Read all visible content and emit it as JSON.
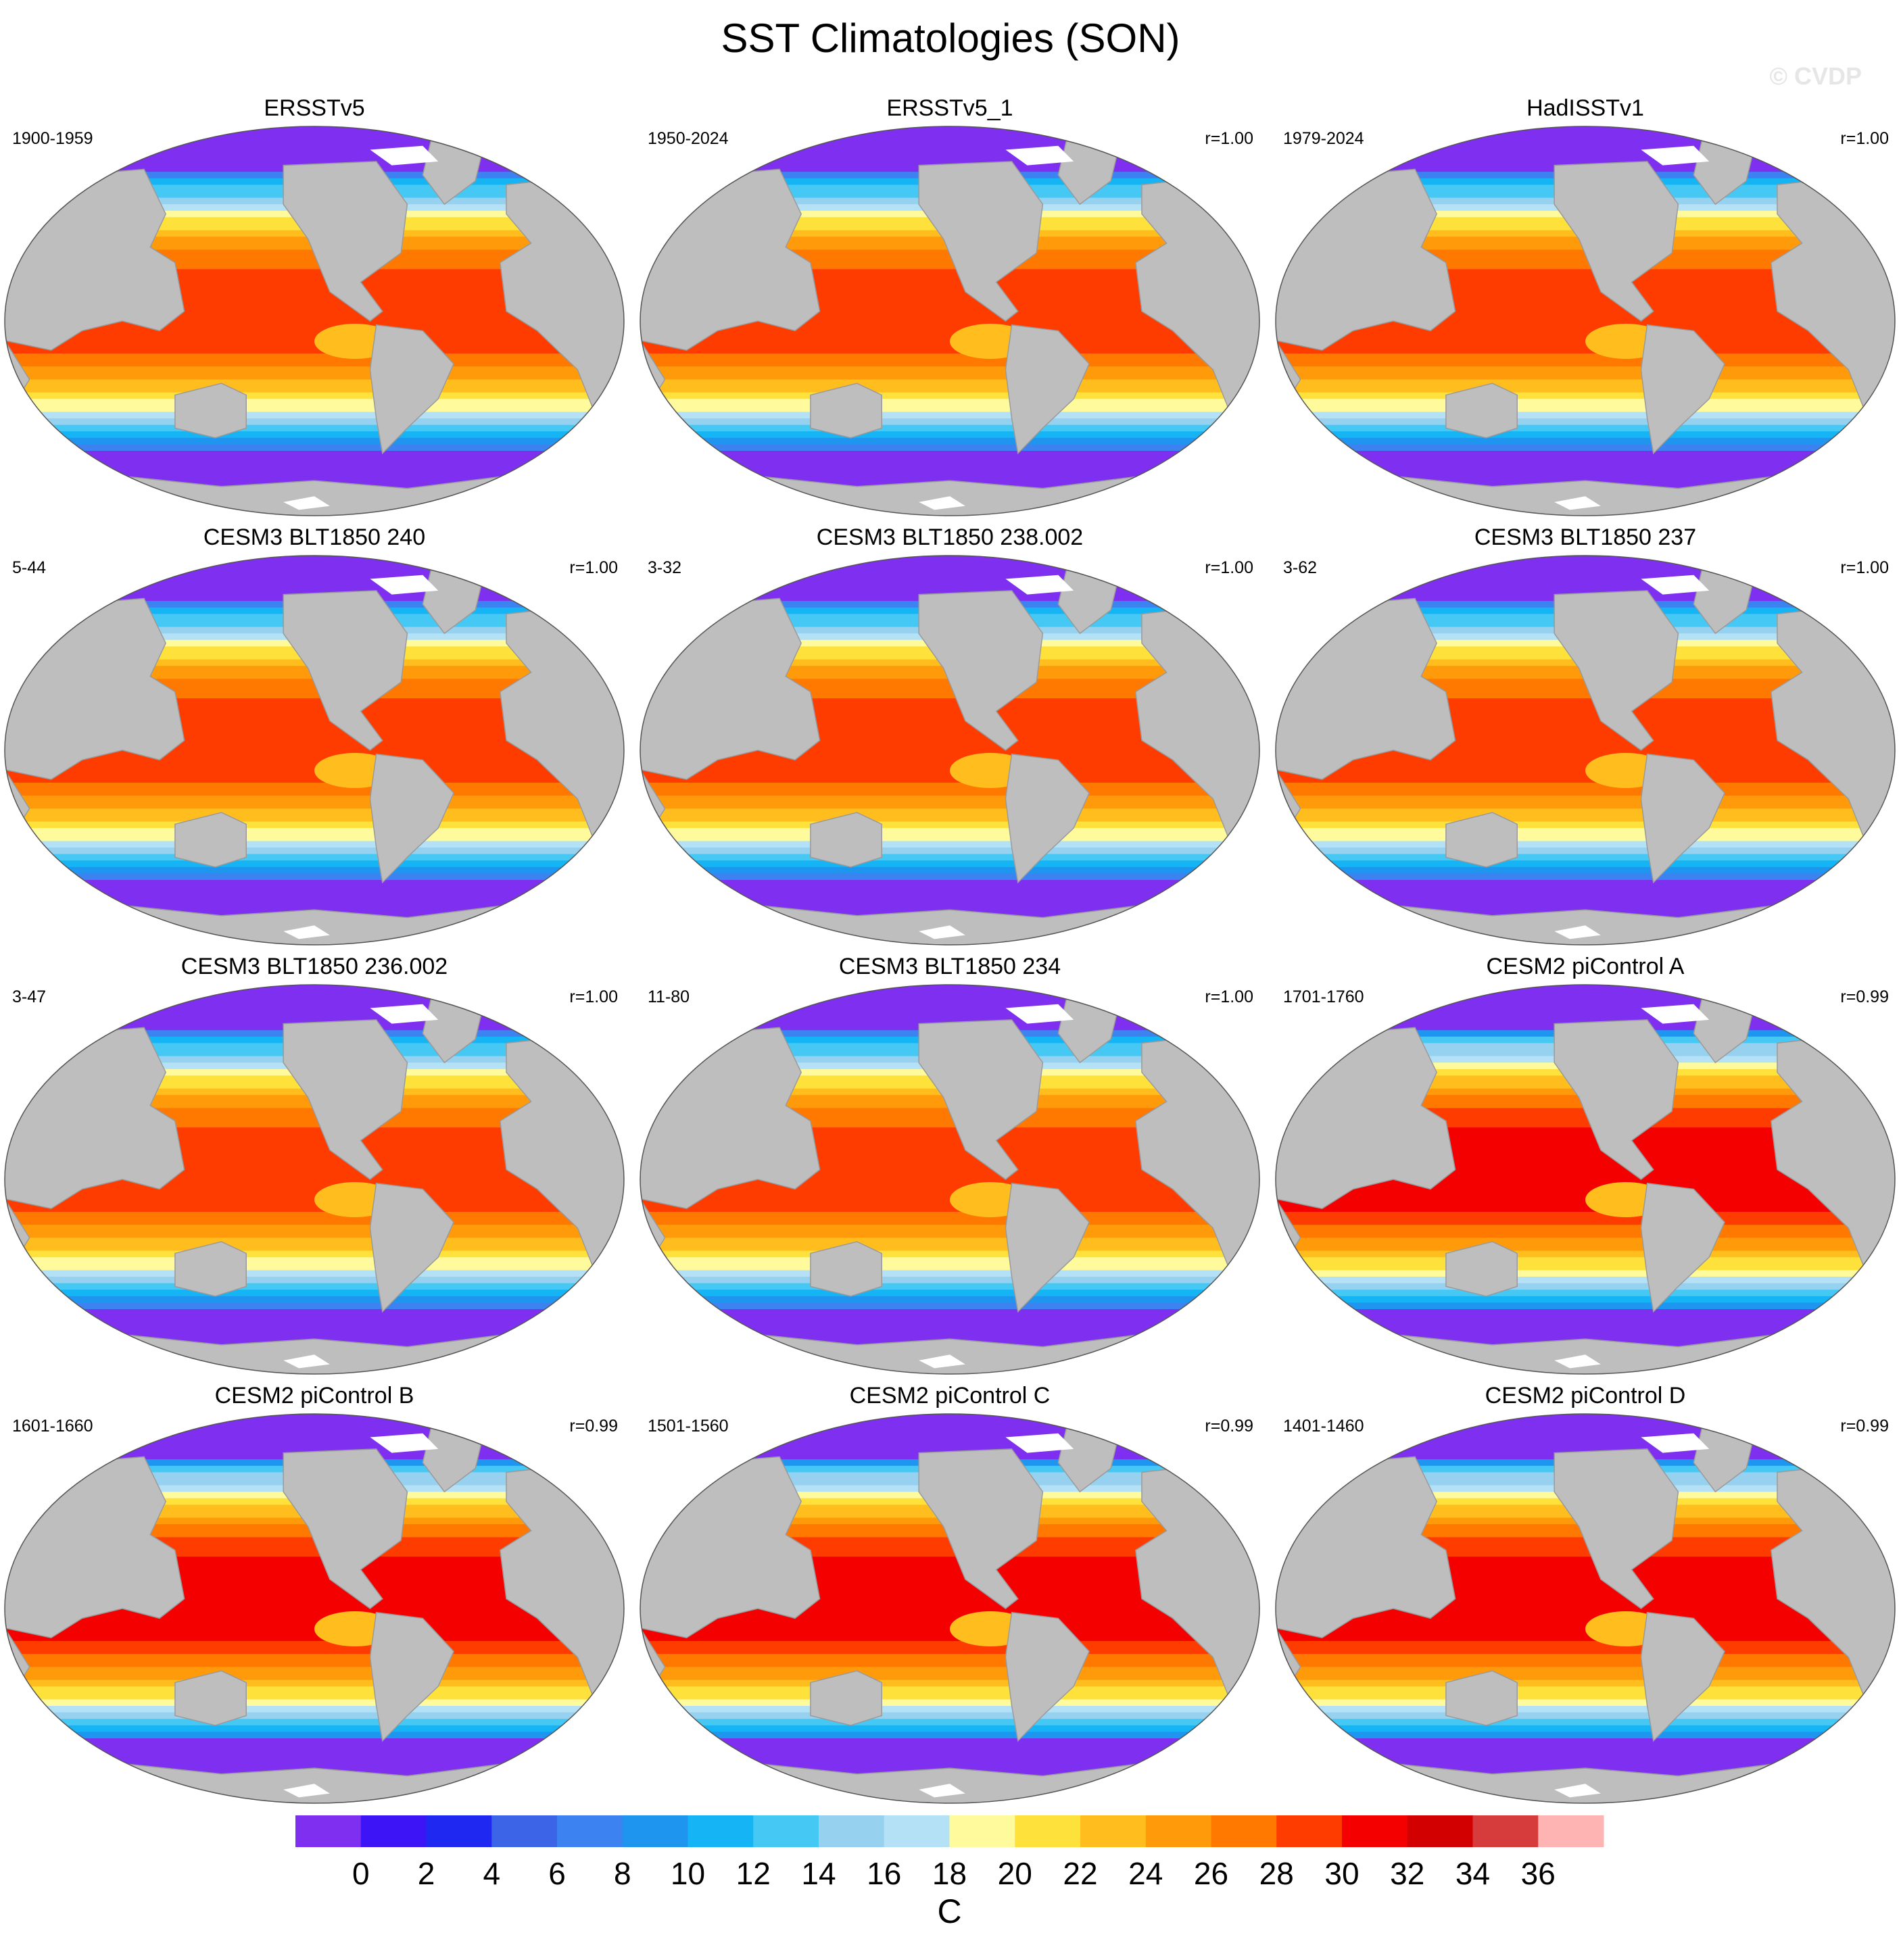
{
  "title": "SST Climatologies (SON)",
  "watermark": "© CVDP",
  "chart_data": {
    "type": "heatmap",
    "variable": "SST",
    "season": "SON",
    "projection": "Robinson global map",
    "panels": [
      {
        "title": "ERSSTv5",
        "years": "1900-1959",
        "r": "",
        "tropical_max": 30
      },
      {
        "title": "ERSSTv5_1",
        "years": "1950-2024",
        "r": "r=1.00",
        "tropical_max": 30
      },
      {
        "title": "HadISSTv1",
        "years": "1979-2024",
        "r": "r=1.00",
        "tropical_max": 30
      },
      {
        "title": "CESM3 BLT1850 240",
        "years": "5-44",
        "r": "r=1.00",
        "tropical_max": 30
      },
      {
        "title": "CESM3 BLT1850 238.002",
        "years": "3-32",
        "r": "r=1.00",
        "tropical_max": 30
      },
      {
        "title": "CESM3 BLT1850 237",
        "years": "3-62",
        "r": "r=1.00",
        "tropical_max": 30
      },
      {
        "title": "CESM3 BLT1850 236.002",
        "years": "3-47",
        "r": "r=1.00",
        "tropical_max": 30
      },
      {
        "title": "CESM3 BLT1850 234",
        "years": "11-80",
        "r": "r=1.00",
        "tropical_max": 30
      },
      {
        "title": "CESM2 piControl A",
        "years": "1701-1760",
        "r": "r=0.99",
        "tropical_max": 32
      },
      {
        "title": "CESM2 piControl B",
        "years": "1601-1660",
        "r": "r=0.99",
        "tropical_max": 32
      },
      {
        "title": "CESM2 piControl C",
        "years": "1501-1560",
        "r": "r=0.99",
        "tropical_max": 32
      },
      {
        "title": "CESM2 piControl D",
        "years": "1401-1460",
        "r": "r=0.99",
        "tropical_max": 32
      }
    ],
    "colorbar": {
      "label": "C",
      "ticks": [
        "0",
        "2",
        "4",
        "6",
        "8",
        "10",
        "12",
        "14",
        "16",
        "18",
        "20",
        "22",
        "24",
        "26",
        "28",
        "30",
        "32",
        "34",
        "36"
      ],
      "colors": [
        "#7f2ff0",
        "#3c14f5",
        "#1e28f0",
        "#3c64e6",
        "#3c82f0",
        "#1e96f0",
        "#14b4f5",
        "#46c8f5",
        "#96d2f0",
        "#b4e1f5",
        "#fffa9b",
        "#ffe13c",
        "#ffbe1e",
        "#ff9b0a",
        "#ff7800",
        "#ff3c00",
        "#f50000",
        "#d20000",
        "#d73c3c",
        "#ffb4b4"
      ]
    }
  }
}
